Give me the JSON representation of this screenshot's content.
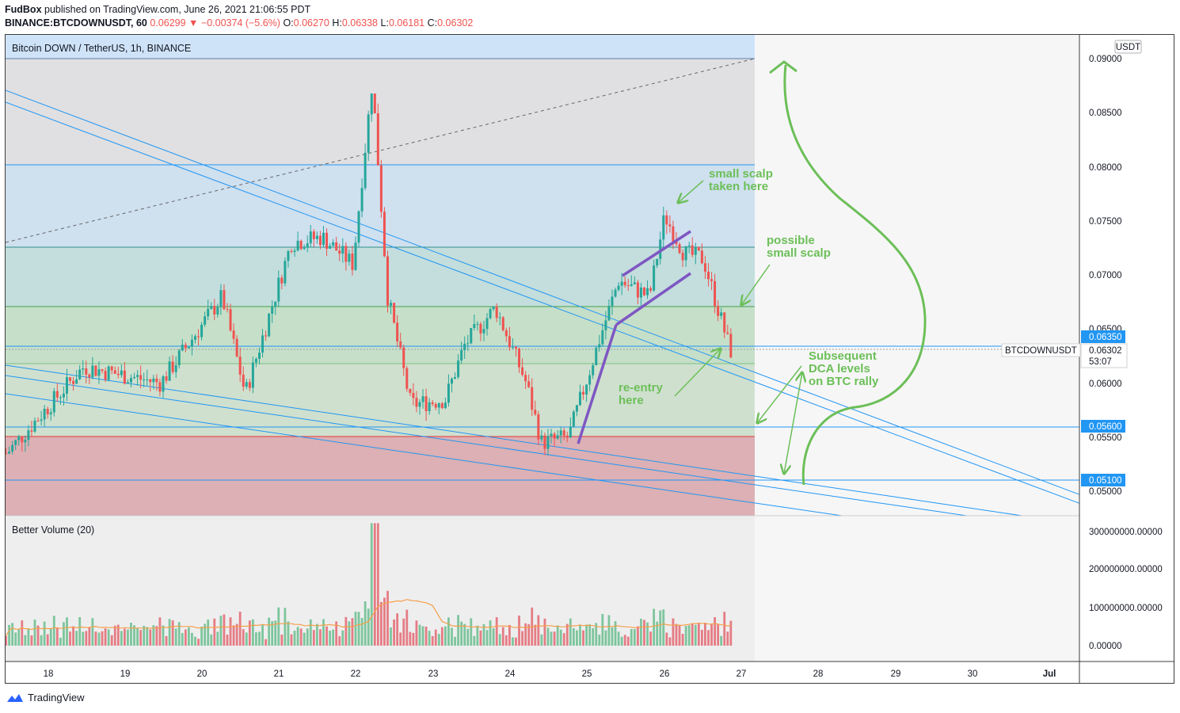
{
  "header": {
    "publisher": "FudBox",
    "published_text": "published on TradingView.com, June 26, 2021 21:06:55 PDT",
    "symbol": "BINANCE:BTCDOWNUSDT, 60",
    "last": "0.06299",
    "change": "−0.00374 (−5.6%)",
    "open_label": "O:",
    "open": "0.06270",
    "high_label": "H:",
    "high": "0.06338",
    "low_label": "L:",
    "low": "0.06181",
    "close_label": "C:",
    "close": "0.06302"
  },
  "chart_title": "Bitcoin DOWN / TetherUS, 1h, BINANCE",
  "currency": "USDT",
  "price_ticks": [
    "0.09000",
    "0.08500",
    "0.08000",
    "0.07500",
    "0.07000",
    "0.06500",
    "0.06000",
    "0.05500",
    "0.05000"
  ],
  "price_badges": {
    "upper": "0.06350",
    "mid": "0.05600",
    "lower": "0.05100"
  },
  "last_badge": {
    "symbol": "BTCDOWNUSDT",
    "price": "0.06302",
    "countdown": "53:07"
  },
  "volume_title": "Better Volume (20)",
  "volume_ticks": [
    "300000000.00000",
    "200000000.00000",
    "100000000.00000",
    "0.00000"
  ],
  "time_ticks": [
    "18",
    "19",
    "20",
    "21",
    "22",
    "23",
    "24",
    "25",
    "26",
    "27",
    "28",
    "29",
    "30",
    "Jul"
  ],
  "annotations": {
    "a1_line1": "small scalp",
    "a1_line2": "taken here",
    "a2_line1": "possible",
    "a2_line2": "small scalp",
    "a3_line1": "re-entry",
    "a3_line2": "here",
    "a4_line1": "Subsequent",
    "a4_line2": "DCA levels",
    "a4_line3": "on BTC rally"
  },
  "footer": {
    "brand": "TradingView"
  },
  "colors": {
    "up": "#26a69a",
    "down": "#ef5350",
    "trendline": "#2196f3",
    "annotation": "#6cbf58",
    "channel": "#7e57c2"
  },
  "chart_data": {
    "type": "candlestick",
    "x_axis": [
      "18",
      "19",
      "20",
      "21",
      "22",
      "23",
      "24",
      "25",
      "26",
      "27",
      "28",
      "29",
      "30",
      "Jul"
    ],
    "y_range": [
      0.047,
      0.0915
    ],
    "y_ticks": [
      0.09,
      0.085,
      0.08,
      0.075,
      0.07,
      0.065,
      0.06,
      0.055,
      0.05
    ],
    "key_points": [
      {
        "day": 17.5,
        "price": 0.0535
      },
      {
        "day": 18.5,
        "price": 0.0615
      },
      {
        "day": 19.5,
        "price": 0.06
      },
      {
        "day": 20.3,
        "price": 0.068
      },
      {
        "day": 20.6,
        "price": 0.059
      },
      {
        "day": 21.2,
        "price": 0.073
      },
      {
        "day": 21.6,
        "price": 0.0735
      },
      {
        "day": 22.0,
        "price": 0.071
      },
      {
        "day": 22.25,
        "price": 0.088
      },
      {
        "day": 22.45,
        "price": 0.068
      },
      {
        "day": 22.75,
        "price": 0.058
      },
      {
        "day": 23.2,
        "price": 0.0585
      },
      {
        "day": 23.45,
        "price": 0.0635
      },
      {
        "day": 23.85,
        "price": 0.067
      },
      {
        "day": 24.25,
        "price": 0.06
      },
      {
        "day": 24.45,
        "price": 0.0545
      },
      {
        "day": 24.8,
        "price": 0.055
      },
      {
        "day": 25.2,
        "price": 0.064
      },
      {
        "day": 25.45,
        "price": 0.0695
      },
      {
        "day": 25.85,
        "price": 0.068
      },
      {
        "day": 26.05,
        "price": 0.0755
      },
      {
        "day": 26.3,
        "price": 0.072
      },
      {
        "day": 26.55,
        "price": 0.0715
      },
      {
        "day": 26.9,
        "price": 0.063
      }
    ],
    "horizontal_levels": [
      0.09,
      0.0802,
      0.0725,
      0.067,
      0.0635,
      0.0618,
      0.056,
      0.0551,
      0.051
    ],
    "volume_series": {
      "name": "Better Volume (20)",
      "y_range": [
        0,
        300000000
      ]
    }
  }
}
